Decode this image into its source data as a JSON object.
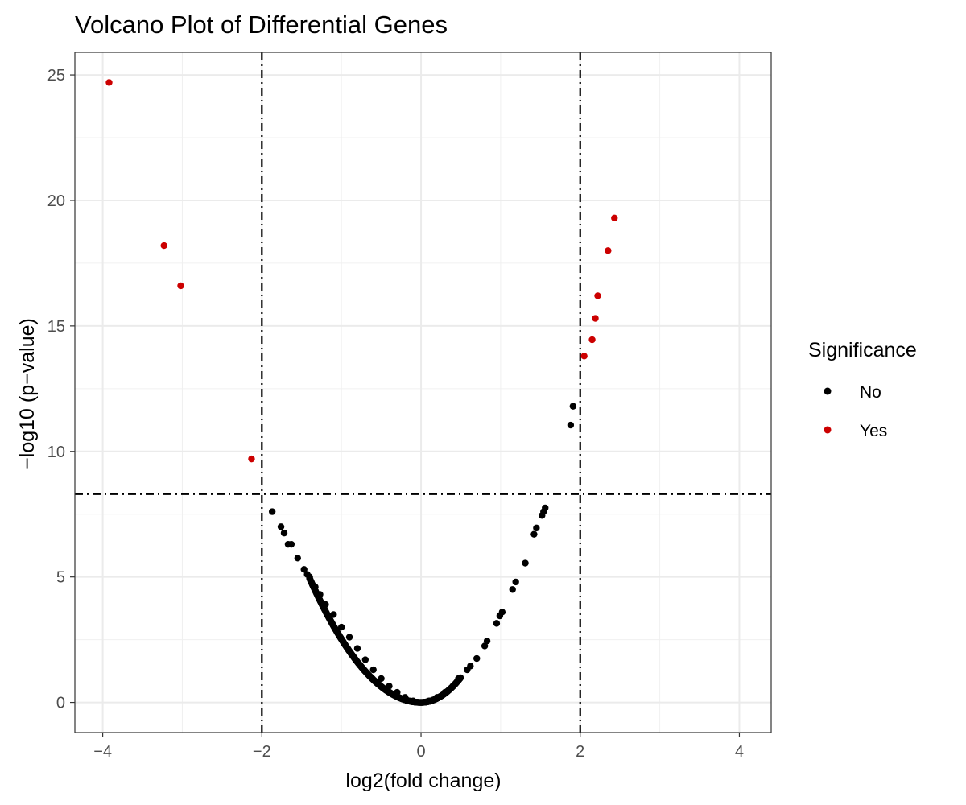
{
  "chart_data": {
    "type": "scatter",
    "title": "Volcano Plot of Differential Genes",
    "xlabel": "log2(fold change)",
    "ylabel": "−log10 (p−value)",
    "xlim": [
      -4.35,
      4.4
    ],
    "ylim": [
      -1.2,
      25.9
    ],
    "x_ticks": [
      -4,
      -2,
      0,
      2,
      4
    ],
    "x_tick_labels": [
      "−4",
      "−2",
      "0",
      "2",
      "4"
    ],
    "y_ticks": [
      0,
      5,
      10,
      15,
      20,
      25
    ],
    "y_tick_labels": [
      "0",
      "5",
      "10",
      "15",
      "20",
      "25"
    ],
    "grid": true,
    "threshold_lines": {
      "x": [
        -2,
        2
      ],
      "y": [
        8.3
      ]
    },
    "legend": {
      "title": "Significance",
      "position": "right",
      "entries": [
        {
          "label": "No",
          "color": "#000000"
        },
        {
          "label": "Yes",
          "color": "#cc0000"
        }
      ]
    },
    "series": [
      {
        "name": "No",
        "color": "#000000",
        "points": [
          [
            -1.87,
            7.6
          ],
          [
            -1.76,
            7.0
          ],
          [
            -1.72,
            6.75
          ],
          [
            -1.67,
            6.3
          ],
          [
            -1.63,
            6.3
          ],
          [
            -1.55,
            5.75
          ],
          [
            -1.47,
            5.3
          ],
          [
            -1.43,
            5.1
          ],
          [
            -1.4,
            5.0
          ],
          [
            -1.33,
            4.6
          ],
          [
            -1.27,
            4.3
          ],
          [
            -1.2,
            3.9
          ],
          [
            -1.1,
            3.5
          ],
          [
            -1.0,
            3.0
          ],
          [
            -0.9,
            2.6
          ],
          [
            -0.8,
            2.15
          ],
          [
            -0.7,
            1.7
          ],
          [
            -0.6,
            1.3
          ],
          [
            -0.5,
            0.95
          ],
          [
            -0.4,
            0.65
          ],
          [
            -0.3,
            0.4
          ],
          [
            -0.2,
            0.2
          ],
          [
            -0.1,
            0.06
          ],
          [
            0.0,
            0.0
          ],
          [
            0.1,
            0.06
          ],
          [
            0.2,
            0.2
          ],
          [
            0.3,
            0.4
          ],
          [
            0.4,
            0.65
          ],
          [
            0.47,
            0.95
          ],
          [
            0.58,
            1.3
          ],
          [
            0.62,
            1.45
          ],
          [
            0.7,
            1.75
          ],
          [
            0.8,
            2.25
          ],
          [
            0.83,
            2.45
          ],
          [
            0.95,
            3.15
          ],
          [
            0.99,
            3.45
          ],
          [
            1.02,
            3.6
          ],
          [
            1.15,
            4.5
          ],
          [
            1.19,
            4.8
          ],
          [
            1.31,
            5.55
          ],
          [
            1.42,
            6.7
          ],
          [
            1.45,
            6.95
          ],
          [
            1.52,
            7.45
          ],
          [
            1.54,
            7.6
          ],
          [
            1.56,
            7.75
          ],
          [
            1.88,
            11.05
          ],
          [
            1.91,
            11.8
          ]
        ]
      },
      {
        "name": "Yes",
        "color": "#cc0000",
        "points": [
          [
            -3.92,
            24.7
          ],
          [
            -3.23,
            18.2
          ],
          [
            -3.02,
            16.6
          ],
          [
            -2.13,
            9.7
          ],
          [
            2.05,
            13.8
          ],
          [
            2.15,
            14.45
          ],
          [
            2.19,
            15.3
          ],
          [
            2.22,
            16.2
          ],
          [
            2.35,
            18.0
          ],
          [
            2.43,
            19.3
          ]
        ]
      }
    ]
  }
}
